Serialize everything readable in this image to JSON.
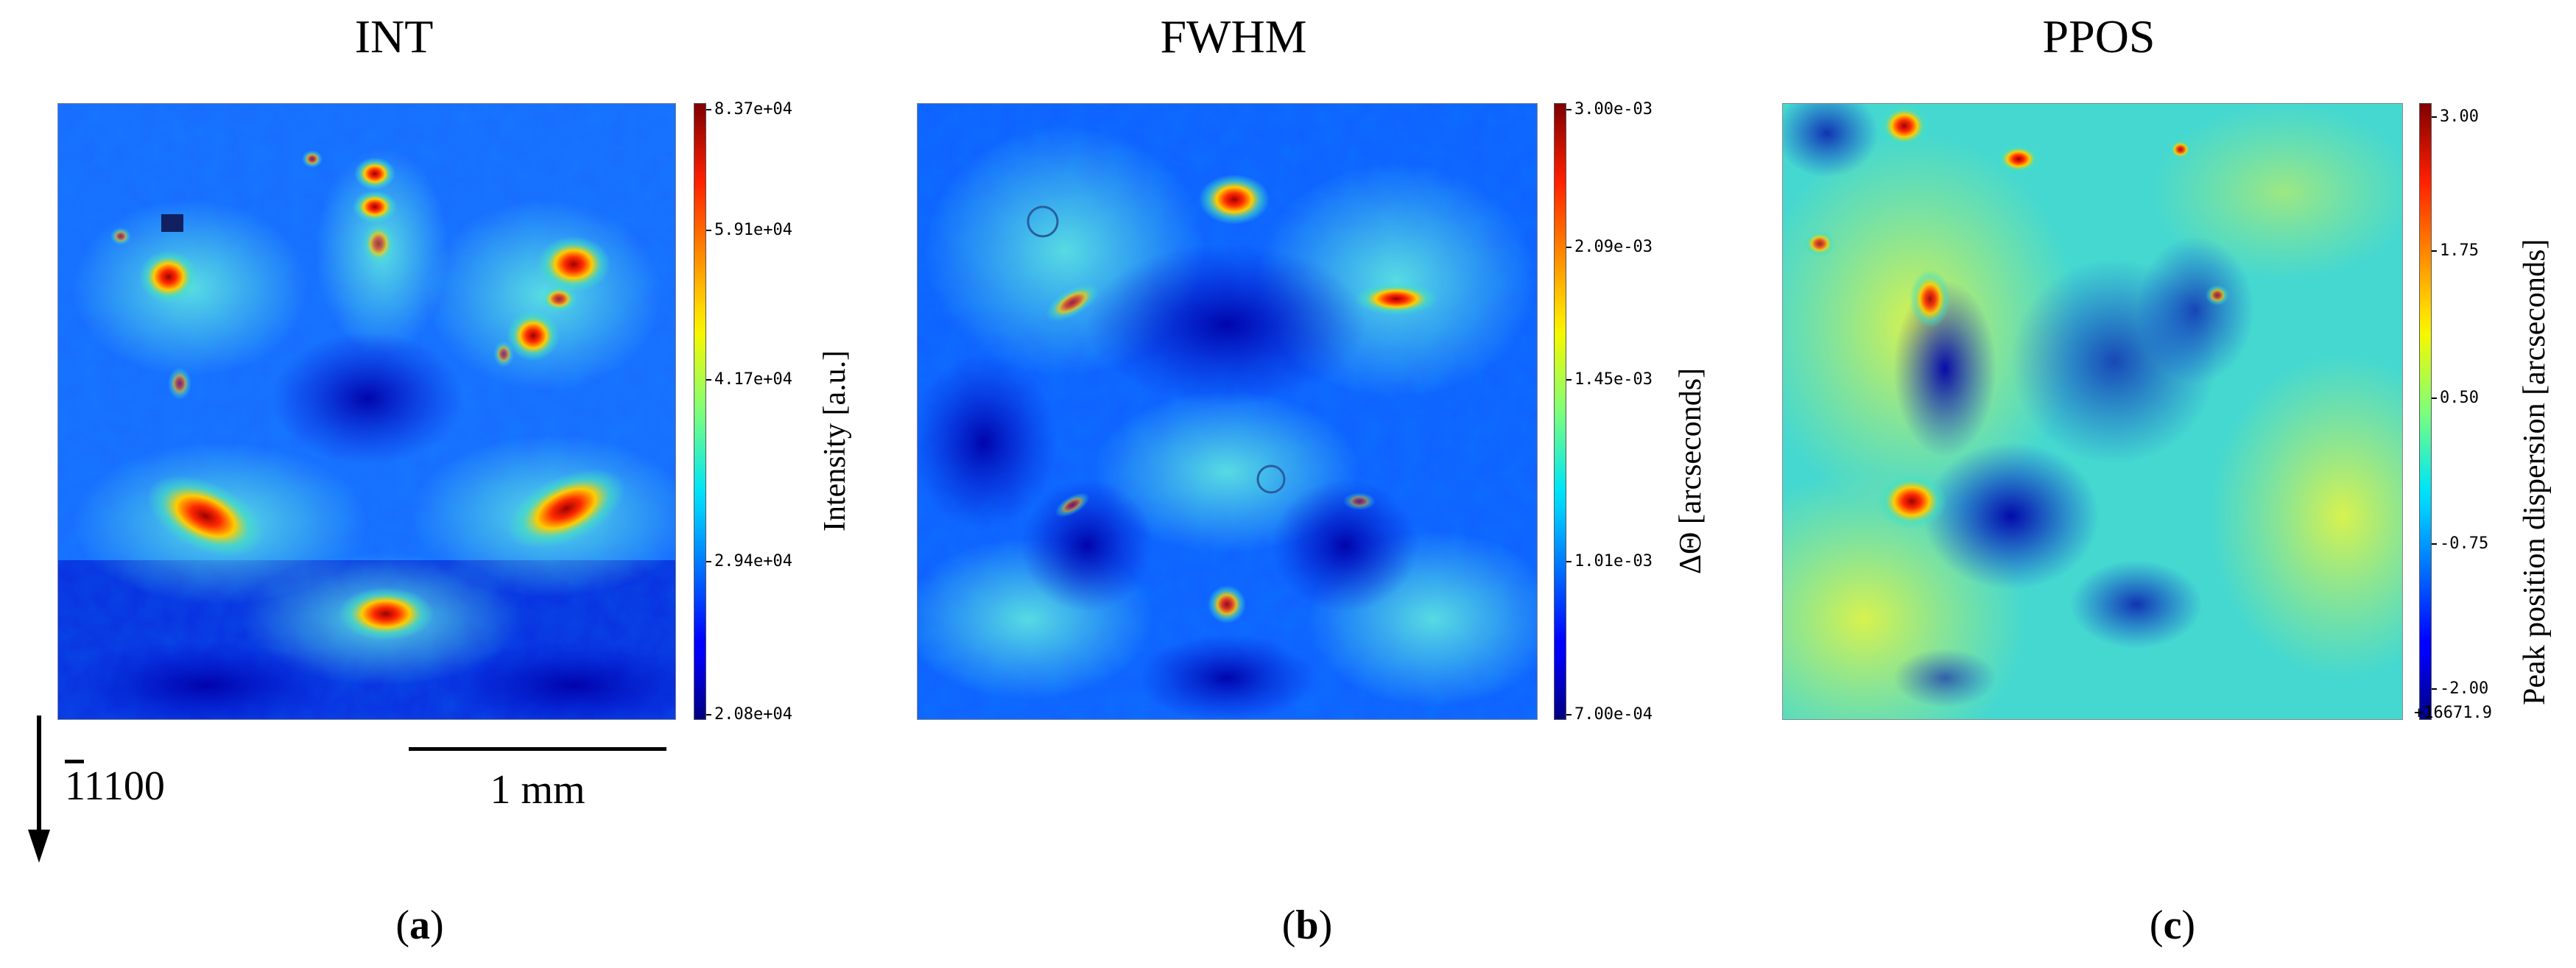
{
  "panels": [
    {
      "title": "INT",
      "colorbar_label": "Intensity [a.u.]",
      "ticks": [
        "8.37e+04",
        "5.91e+04",
        "4.17e+04",
        "2.94e+04",
        "2.08e+04"
      ],
      "offset_text": "",
      "letter": "a"
    },
    {
      "title": "FWHM",
      "colorbar_label": "ΔΘ [arcseconds]",
      "ticks": [
        "3.00e-03",
        "2.09e-03",
        "1.45e-03",
        "1.01e-03",
        "7.00e-04"
      ],
      "offset_text": "",
      "letter": "b"
    },
    {
      "title": "PPOS",
      "colorbar_label": "Peak position dispersion [arcseconds]",
      "ticks": [
        "3.00",
        "1.75",
        "0.50",
        "-0.75",
        "-2.00"
      ],
      "offset_text": "+16671.9",
      "letter": "c"
    }
  ],
  "direction_label": "1100",
  "direction_bar": "‾1",
  "scale_bar_label": "1 mm",
  "colormap": "jet",
  "chart_data": [
    {
      "type": "heatmap",
      "title": "INT",
      "colorbar_label": "Intensity [a.u.]",
      "colorbar_ticks": [
        83700,
        59100,
        41700,
        29400,
        20800
      ],
      "colorbar_range": [
        20800,
        83700
      ],
      "colormap": "jet"
    },
    {
      "type": "heatmap",
      "title": "FWHM",
      "colorbar_label": "ΔΘ [arcseconds]",
      "colorbar_ticks": [
        0.003,
        0.00209,
        0.00145,
        0.00101,
        0.0007
      ],
      "colorbar_range": [
        0.0007,
        0.003
      ],
      "colormap": "jet"
    },
    {
      "type": "heatmap",
      "title": "PPOS",
      "colorbar_label": "Peak position dispersion [arcseconds]",
      "colorbar_ticks": [
        3.0,
        1.75,
        0.5,
        -0.75,
        -2.0
      ],
      "colorbar_range": [
        -2.0,
        3.0
      ],
      "colorbar_offset": "+16671.9",
      "colormap": "jet"
    }
  ]
}
